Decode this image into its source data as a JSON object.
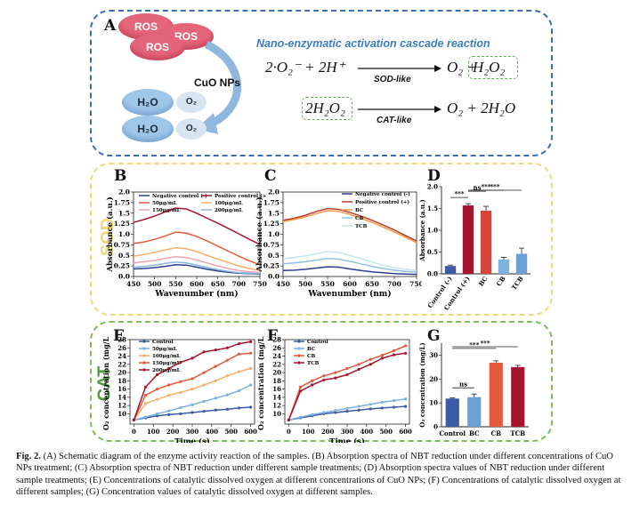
{
  "panel_a": {
    "letter": "A",
    "bubbles": {
      "ros": [
        "ROS",
        "ROS",
        "ROS"
      ],
      "h2o": [
        "H₂O",
        "H₂O"
      ],
      "o2": [
        "O₂",
        "O₂"
      ]
    },
    "catalyst_label": "CuO NPs",
    "cascade_title": "Nano-enzymatic activation cascade reaction",
    "eq1": {
      "left": "2·O₂⁻ + 2H⁺",
      "arrow_label": "SOD-like",
      "right_a": "O₂ +",
      "right_b": "H₂O₂"
    },
    "eq2": {
      "left": "2H₂O₂",
      "arrow_label": "CAT-like",
      "right": "O₂ + 2H₂O"
    },
    "colors": {
      "ros": "#e5657b",
      "h2o": "#9fc7e9",
      "o2": "#d8e5f1",
      "arrow": "#8fb8de",
      "title": "#3b7dc4"
    }
  },
  "section_labels": {
    "sod": "SOD",
    "cat": "CAT"
  },
  "box_colors": {
    "a": "#3a6fb0",
    "sod": "#f0d97a",
    "cat": "#7fbd5c"
  },
  "chart_data": [
    {
      "id": "B",
      "type": "line",
      "xlabel": "Wavenumber (nm)",
      "ylabel": "Absorbance (a.u.)",
      "xlim": [
        450,
        750
      ],
      "ylim": [
        0,
        2.0
      ],
      "xticks": [
        450,
        500,
        550,
        600,
        650,
        700,
        750
      ],
      "yticks": [
        0.0,
        0.25,
        0.5,
        0.75,
        1.0,
        1.25,
        1.5,
        1.75,
        2.0
      ],
      "ytick_labels": [
        "0.0",
        "0.25",
        "0.5",
        "0.75",
        "1.0",
        "1.25",
        "1.5",
        "1.75",
        "2.0"
      ],
      "x": [
        450,
        475,
        500,
        525,
        550,
        575,
        600,
        625,
        650,
        675,
        700,
        725,
        750
      ],
      "series": [
        {
          "name": "Negative control (-)",
          "color": "#2b3f8f",
          "values": [
            0.18,
            0.19,
            0.21,
            0.24,
            0.28,
            0.27,
            0.22,
            0.17,
            0.13,
            0.1,
            0.08,
            0.07,
            0.06
          ]
        },
        {
          "name": "Positive control (+)",
          "color": "#a4162f",
          "values": [
            1.28,
            1.35,
            1.43,
            1.53,
            1.62,
            1.6,
            1.5,
            1.38,
            1.26,
            1.14,
            1.01,
            0.88,
            0.76
          ]
        },
        {
          "name": "50μg/mL",
          "color": "#e35b3c",
          "values": [
            0.78,
            0.82,
            0.88,
            0.96,
            1.05,
            1.03,
            0.95,
            0.84,
            0.72,
            0.6,
            0.48,
            0.37,
            0.28
          ]
        },
        {
          "name": "100μg/mL",
          "color": "#f3b06a",
          "values": [
            0.48,
            0.52,
            0.57,
            0.63,
            0.68,
            0.66,
            0.59,
            0.5,
            0.41,
            0.33,
            0.25,
            0.19,
            0.14
          ]
        },
        {
          "name": "150μg/mL",
          "color": "#f0a3b0",
          "values": [
            0.32,
            0.35,
            0.38,
            0.43,
            0.47,
            0.45,
            0.39,
            0.32,
            0.25,
            0.19,
            0.14,
            0.11,
            0.09
          ]
        },
        {
          "name": "200μg/mL",
          "color": "#87b6df",
          "values": [
            0.22,
            0.24,
            0.27,
            0.31,
            0.34,
            0.32,
            0.27,
            0.21,
            0.16,
            0.12,
            0.09,
            0.08,
            0.07
          ]
        }
      ]
    },
    {
      "id": "C",
      "type": "line",
      "xlabel": "Wavenumber (nm)",
      "ylabel": "Absorbance (a.u.)",
      "xlim": [
        450,
        750
      ],
      "ylim": [
        0,
        2.0
      ],
      "xticks": [
        450,
        500,
        550,
        600,
        650,
        700,
        750
      ],
      "yticks": [
        0.0,
        0.25,
        0.5,
        0.75,
        1.0,
        1.25,
        1.5,
        1.75,
        2.0
      ],
      "ytick_labels": [
        "0.0",
        "0.25",
        "0.5",
        "0.75",
        "1.0",
        "1.25",
        "1.5",
        "1.75",
        "2.0"
      ],
      "x": [
        450,
        475,
        500,
        525,
        550,
        575,
        600,
        625,
        650,
        675,
        700,
        725,
        750
      ],
      "series": [
        {
          "name": "Negative control (-)",
          "color": "#2b3f8f",
          "values": [
            0.14,
            0.15,
            0.17,
            0.2,
            0.23,
            0.22,
            0.18,
            0.14,
            0.11,
            0.09,
            0.07,
            0.06,
            0.05
          ]
        },
        {
          "name": "Positive control (+)",
          "color": "#c0392b",
          "values": [
            1.33,
            1.38,
            1.45,
            1.54,
            1.61,
            1.59,
            1.52,
            1.43,
            1.33,
            1.22,
            1.1,
            0.97,
            0.84
          ]
        },
        {
          "name": "BC",
          "color": "#f39c4a",
          "values": [
            1.3,
            1.35,
            1.41,
            1.49,
            1.56,
            1.54,
            1.47,
            1.38,
            1.28,
            1.17,
            1.05,
            0.93,
            0.8
          ]
        },
        {
          "name": "CB",
          "color": "#8ec2e4",
          "values": [
            0.3,
            0.32,
            0.35,
            0.39,
            0.43,
            0.41,
            0.36,
            0.3,
            0.24,
            0.19,
            0.15,
            0.12,
            0.1
          ]
        },
        {
          "name": "TCB",
          "color": "#c3e4ef",
          "values": [
            0.42,
            0.45,
            0.49,
            0.54,
            0.59,
            0.57,
            0.5,
            0.42,
            0.34,
            0.27,
            0.21,
            0.17,
            0.14
          ]
        }
      ]
    },
    {
      "id": "D",
      "type": "bar",
      "xlabel": "",
      "ylabel": "Absorbance (a.u.)",
      "ylim": [
        0,
        2.0
      ],
      "yticks": [
        0.0,
        0.5,
        1.0,
        1.5,
        2.0
      ],
      "ytick_labels": [
        "0.0",
        "0.5",
        "1.0",
        "1.5",
        "2.0"
      ],
      "categories": [
        "Control (-)",
        "Control (+)",
        "BC",
        "CB",
        "TCB"
      ],
      "values": [
        0.18,
        1.57,
        1.45,
        0.33,
        0.46
      ],
      "errors": [
        0.02,
        0.04,
        0.1,
        0.05,
        0.13
      ],
      "colors": [
        "#3c5aa6",
        "#a4162f",
        "#d6453a",
        "#7fb2df",
        "#6b9fd6"
      ],
      "annotations": [
        {
          "from": 0,
          "to": 1,
          "label": "***"
        },
        {
          "from": 1,
          "to": 2,
          "label": "ns"
        },
        {
          "from": 1,
          "to": 3,
          "label": "***"
        },
        {
          "from": 1,
          "to": 4,
          "label": "***"
        }
      ]
    },
    {
      "id": "E",
      "type": "line",
      "xlabel": "Time (s)",
      "ylabel": "O₂ concentration (mg/L)",
      "xlim": [
        -20,
        620
      ],
      "ylim": [
        7.5,
        28
      ],
      "xticks": [
        0,
        100,
        200,
        300,
        400,
        500,
        600
      ],
      "yticks": [
        10,
        12,
        14,
        16,
        18,
        20,
        22,
        24,
        26,
        28
      ],
      "x": [
        0,
        60,
        120,
        180,
        240,
        300,
        360,
        420,
        480,
        540,
        600
      ],
      "series": [
        {
          "name": "Control",
          "color": "#3c5aa6",
          "values": [
            8.5,
            9.0,
            9.5,
            9.8,
            10.0,
            10.3,
            10.6,
            10.9,
            11.1,
            11.4,
            11.6
          ]
        },
        {
          "name": "50μg/mL",
          "color": "#7fb2df",
          "values": [
            8.5,
            9.2,
            10.0,
            10.7,
            11.5,
            12.2,
            13.0,
            13.8,
            14.6,
            15.6,
            17.0
          ]
        },
        {
          "name": "100μg/mL",
          "color": "#f3b06a",
          "values": [
            8.5,
            12.5,
            13.5,
            14.5,
            15.2,
            16.0,
            17.0,
            18.0,
            19.2,
            20.2,
            21.0
          ]
        },
        {
          "name": "150μg/mL",
          "color": "#e35b3c",
          "values": [
            8.5,
            14.5,
            16.0,
            17.0,
            17.8,
            18.5,
            20.0,
            21.5,
            23.0,
            24.5,
            24.7
          ]
        },
        {
          "name": "200μg/mL",
          "color": "#a4162f",
          "values": [
            8.5,
            16.5,
            19.5,
            21.0,
            22.5,
            23.5,
            25.0,
            25.5,
            26.0,
            27.0,
            27.5
          ]
        }
      ]
    },
    {
      "id": "F",
      "type": "line",
      "xlabel": "Time (s)",
      "ylabel": "O₂ concentration (mg/L)",
      "xlim": [
        -20,
        620
      ],
      "ylim": [
        7.5,
        28
      ],
      "xticks": [
        0,
        100,
        200,
        300,
        400,
        500,
        600
      ],
      "yticks": [
        10,
        12,
        14,
        16,
        18,
        20,
        22,
        24,
        26,
        28
      ],
      "x": [
        0,
        60,
        120,
        180,
        240,
        300,
        360,
        420,
        480,
        540,
        600
      ],
      "series": [
        {
          "name": "Control",
          "color": "#3c5aa6",
          "values": [
            8.5,
            9.0,
            9.5,
            10.0,
            10.3,
            10.6,
            10.9,
            11.2,
            11.4,
            11.6,
            11.8
          ]
        },
        {
          "name": "BC",
          "color": "#7fb2df",
          "values": [
            8.5,
            9.2,
            9.8,
            10.3,
            10.8,
            11.3,
            11.8,
            12.3,
            12.8,
            13.2,
            13.6
          ]
        },
        {
          "name": "CB",
          "color": "#e35b3c",
          "values": [
            8.5,
            16.5,
            18.0,
            19.2,
            20.0,
            21.0,
            22.0,
            23.2,
            24.2,
            25.3,
            26.5
          ]
        },
        {
          "name": "TCB",
          "color": "#a4162f",
          "values": [
            8.5,
            15.5,
            17.0,
            18.2,
            18.7,
            19.5,
            20.8,
            22.0,
            23.5,
            24.3,
            24.7
          ]
        }
      ]
    },
    {
      "id": "G",
      "type": "bar",
      "xlabel": "",
      "ylabel": "O₂ concentration (mg/L)",
      "ylim": [
        0,
        35
      ],
      "yticks": [
        0,
        10,
        20,
        30
      ],
      "ytick_labels": [
        "0",
        "10",
        "20",
        "30"
      ],
      "categories": [
        "Control",
        "BC",
        "CB",
        "TCB"
      ],
      "values": [
        11.8,
        12.4,
        26.8,
        25.0
      ],
      "errors": [
        0.3,
        1.3,
        0.8,
        0.7
      ],
      "colors": [
        "#3c5aa6",
        "#6b9fd6",
        "#e35b3c",
        "#a4162f"
      ],
      "annotations": [
        {
          "from": 0,
          "to": 1,
          "label": "ns"
        },
        {
          "from": 0,
          "to": 2,
          "label": "***"
        },
        {
          "from": 0,
          "to": 3,
          "label": "***"
        }
      ]
    }
  ],
  "caption": {
    "label": "Fig. 2.",
    "text": "(A) Schematic diagram of the enzyme activity reaction of the samples. (B) Absorption spectra of NBT reduction under different concentrations of CuO NPs treatment; (C) Absorption spectra of NBT reduction under different sample treatments; (D) Absorption spectra values of NBT reduction under different sample treatments; (E) Concentrations of catalytic dissolved oxygen at different concentrations of CuO NPs; (F) Concentrations of catalytic dissolved oxygen at different samples; (G) Concentration values of catalytic dissolved oxygen at different samples."
  }
}
